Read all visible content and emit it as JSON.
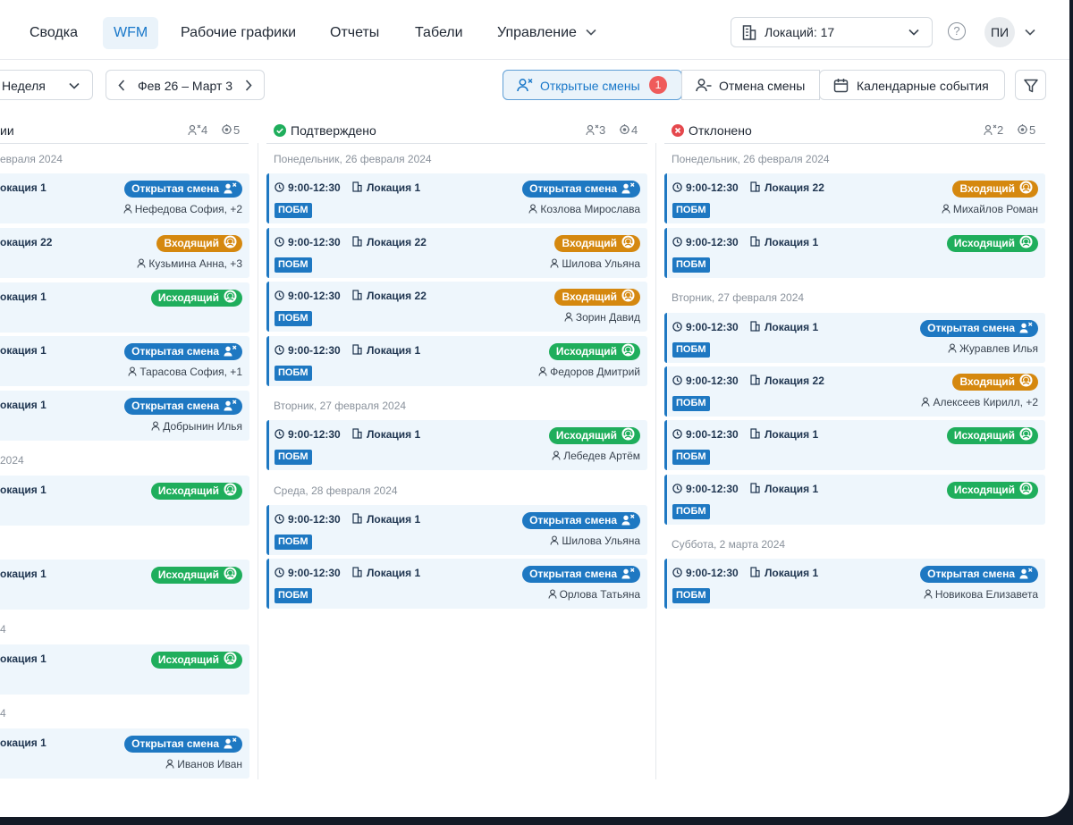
{
  "nav": {
    "items": [
      "Сводка",
      "WFM",
      "Рабочие графики",
      "Отчеты",
      "Табели",
      "Управление"
    ],
    "location_select": "Локаций: 17",
    "avatar": "ПИ",
    "help": "?"
  },
  "toolbar": {
    "period": "Неделя",
    "range": "Фев 26 – Март 3",
    "open_shifts": "Открытые смены",
    "open_shifts_count": "1",
    "cancel_shift": "Отмена смены",
    "calendar_events": "Календарные события"
  },
  "colors": {
    "blue": "#1e78c2",
    "orange": "#d5880f",
    "green": "#1fae5c",
    "red": "#e5484d"
  },
  "columns": [
    {
      "title": "ии",
      "c1": "4",
      "c2": "5"
    },
    {
      "title": "Подтверждено",
      "c1": "3",
      "c2": "4"
    },
    {
      "title": "Отклонено",
      "c1": "2",
      "c2": "5"
    }
  ],
  "days": {
    "c0": [
      "евраля 2024",
      "2024",
      "4",
      "4"
    ],
    "c1": [
      "Понедельник, 26 февраля 2024",
      "Вторник, 27 февраля 2024",
      "Среда, 28 февраля 2024"
    ],
    "c2": [
      "Понедельник, 26 февраля 2024",
      "Вторник, 27 февраля 2024",
      "Суббота, 2 марта 2024"
    ]
  },
  "cards": {
    "c0": [
      {
        "loc": "окация 1",
        "badge": "Открытая смена",
        "emp": "Нефедова София, +2"
      },
      {
        "loc": "окация 22",
        "badge": "Входящий",
        "emp": "Кузьмина Анна, +3"
      },
      {
        "loc": "окация 1",
        "badge": "Исходящий",
        "emp": ""
      },
      {
        "loc": "окация 1",
        "badge": "Открытая смена",
        "emp": "Тарасова София, +1"
      },
      {
        "loc": "окация 1",
        "badge": "Открытая смена",
        "emp": "Добрынин Илья"
      },
      {
        "loc": "окация 1",
        "badge": "Исходящий",
        "emp": ""
      },
      {
        "loc": "окация 1",
        "badge": "Исходящий",
        "emp": ""
      },
      {
        "loc": "окация 1",
        "badge": "Исходящий",
        "emp": ""
      },
      {
        "loc": "окация 1",
        "badge": "Открытая смена",
        "emp": "Иванов Иван"
      }
    ],
    "c1": [
      {
        "time": "9:00-12:30",
        "loc": "Локация 1",
        "tag": "ПОБМ",
        "badge": "Открытая смена",
        "emp": "Козлова Мирослава"
      },
      {
        "time": "9:00-12:30",
        "loc": "Локация 22",
        "tag": "ПОБМ",
        "badge": "Входящий",
        "emp": "Шилова Ульяна"
      },
      {
        "time": "9:00-12:30",
        "loc": "Локация 22",
        "tag": "ПОБМ",
        "badge": "Входящий",
        "emp": "Зорин Давид"
      },
      {
        "time": "9:00-12:30",
        "loc": "Локация 1",
        "tag": "ПОБМ",
        "badge": "Исходящий",
        "emp": "Федоров Дмитрий"
      },
      {
        "time": "9:00-12:30",
        "loc": "Локация 1",
        "tag": "ПОБМ",
        "badge": "Исходящий",
        "emp": "Лебедев Артём"
      },
      {
        "time": "9:00-12:30",
        "loc": "Локация 1",
        "tag": "ПОБМ",
        "badge": "Открытая смена",
        "emp": "Шилова Ульяна"
      },
      {
        "time": "9:00-12:30",
        "loc": "Локация 1",
        "tag": "ПОБМ",
        "badge": "Открытая смена",
        "emp": "Орлова Татьяна"
      }
    ],
    "c2": [
      {
        "time": "9:00-12:30",
        "loc": "Локация 22",
        "tag": "ПОБМ",
        "badge": "Входящий",
        "emp": "Михайлов Роман"
      },
      {
        "time": "9:00-12:30",
        "loc": "Локация 1",
        "tag": "ПОБМ",
        "badge": "Исходящий",
        "emp": ""
      },
      {
        "time": "9:00-12:30",
        "loc": "Локация 1",
        "tag": "ПОБМ",
        "badge": "Открытая смена",
        "emp": "Журавлев Илья"
      },
      {
        "time": "9:00-12:30",
        "loc": "Локация 22",
        "tag": "ПОБМ",
        "badge": "Входящий",
        "emp": "Алексеев Кирилл, +2"
      },
      {
        "time": "9:00-12:30",
        "loc": "Локация 1",
        "tag": "ПОБМ",
        "badge": "Исходящий",
        "emp": ""
      },
      {
        "time": "9:00-12:30",
        "loc": "Локация 1",
        "tag": "ПОБМ",
        "badge": "Исходящий",
        "emp": ""
      },
      {
        "time": "9:00-12:30",
        "loc": "Локация 1",
        "tag": "ПОБМ",
        "badge": "Открытая смена",
        "emp": "Новикова Елизавета"
      }
    ]
  }
}
